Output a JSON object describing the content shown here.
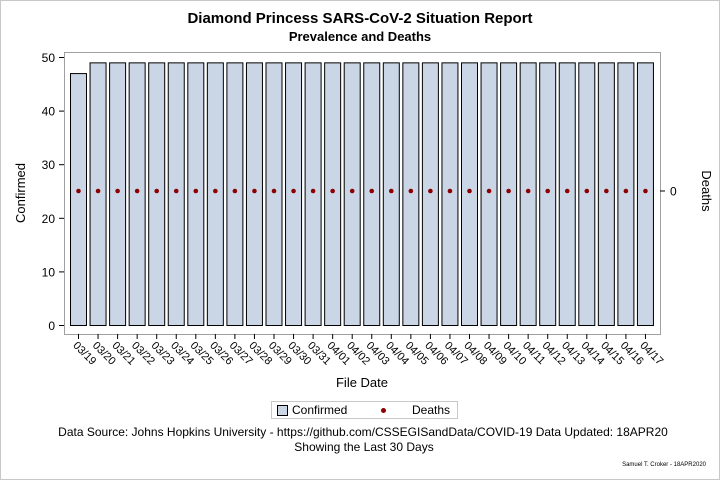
{
  "title": "Diamond Princess SARS-CoV-2 Situation Report",
  "subtitle": "Prevalence and Deaths",
  "chart_data": {
    "type": "bar",
    "categories": [
      "03/19",
      "03/20",
      "03/21",
      "03/22",
      "03/23",
      "03/24",
      "03/25",
      "03/26",
      "03/27",
      "03/28",
      "03/29",
      "03/30",
      "03/31",
      "04/01",
      "04/02",
      "04/03",
      "04/04",
      "04/05",
      "04/06",
      "04/07",
      "04/08",
      "04/09",
      "04/10",
      "04/11",
      "04/12",
      "04/13",
      "04/14",
      "04/15",
      "04/16",
      "04/17"
    ],
    "series": [
      {
        "name": "Confirmed",
        "type": "bar",
        "axis": "left",
        "values": [
          47,
          49,
          49,
          49,
          49,
          49,
          49,
          49,
          49,
          49,
          49,
          49,
          49,
          49,
          49,
          49,
          49,
          49,
          49,
          49,
          49,
          49,
          49,
          49,
          49,
          49,
          49,
          49,
          49,
          49
        ]
      },
      {
        "name": "Deaths",
        "type": "scatter",
        "axis": "right",
        "values": [
          0,
          0,
          0,
          0,
          0,
          0,
          0,
          0,
          0,
          0,
          0,
          0,
          0,
          0,
          0,
          0,
          0,
          0,
          0,
          0,
          0,
          0,
          0,
          0,
          0,
          0,
          0,
          0,
          0,
          0
        ]
      }
    ],
    "xlabel": "File Date",
    "ylabel": "Confirmed",
    "y2label": "Deaths",
    "ylim": [
      0,
      50
    ],
    "yticks": [
      0,
      10,
      20,
      30,
      40,
      50
    ],
    "y2ticks": [
      0
    ],
    "grid": false,
    "legend_position": "bottom",
    "colors": {
      "bar_fill": "#cad5e5",
      "bar_edge": "#000000",
      "marker": "#8b0000"
    }
  },
  "legend": {
    "confirmed": "Confirmed",
    "deaths": "Deaths"
  },
  "footnotes": {
    "line1": "Data Source: Johns Hopkins University - https://github.com/CSSEGISandData/COVID-19 Data Updated: 18APR20",
    "line2": "Showing the Last 30 Days",
    "signature": "Samuel T. Croker - 18APR2020"
  }
}
